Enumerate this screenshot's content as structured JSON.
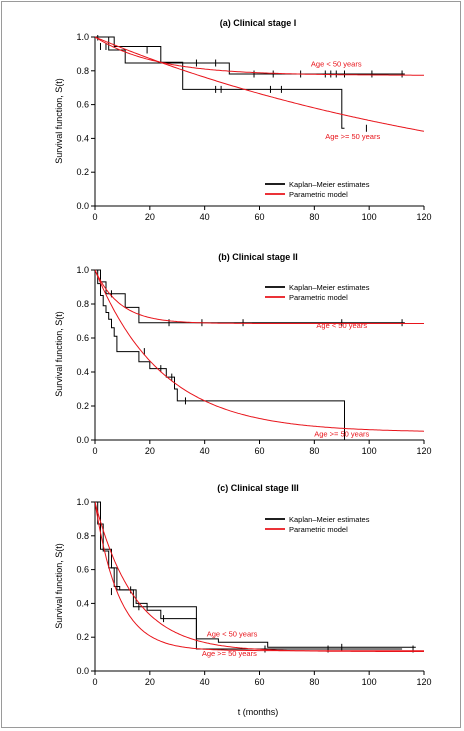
{
  "figure": {
    "xlabel": "t (months)"
  },
  "chart_data": [
    {
      "type": "line",
      "title": "(a) Clinical stage I",
      "ylabel": "Survival function, S(t)",
      "xlim": [
        0,
        120
      ],
      "ylim": [
        0,
        1
      ],
      "xticks": [
        0,
        20,
        40,
        60,
        80,
        100,
        120
      ],
      "yticks": [
        0.0,
        0.2,
        0.4,
        0.6,
        0.8,
        1.0
      ],
      "legend": {
        "placement": "bottom-right",
        "items": [
          {
            "label": "Kaplan–Meier estimates",
            "color": "#000000"
          },
          {
            "label": "Parametric model",
            "color": "#e8141b"
          }
        ]
      },
      "annotations": [
        {
          "text": "Age < 50 years",
          "x": 88,
          "y": 0.825
        },
        {
          "text": "Age >= 50 years",
          "x": 94,
          "y": 0.395
        }
      ],
      "series": [
        {
          "kind": "km",
          "group": "younger",
          "color": "#000000",
          "steps": [
            [
              0,
              1.0
            ],
            [
              5,
              0.923
            ],
            [
              11,
              0.846
            ],
            [
              25,
              0.846
            ],
            [
              49,
              0.781
            ],
            [
              113,
              0.781
            ]
          ],
          "censor": [
            [
              1,
              1.0
            ],
            [
              19,
              0.923
            ],
            [
              37,
              0.846
            ],
            [
              44,
              0.846
            ],
            [
              58,
              0.781
            ],
            [
              65,
              0.781
            ],
            [
              75,
              0.781
            ],
            [
              84,
              0.781
            ],
            [
              86,
              0.781
            ],
            [
              88,
              0.781
            ],
            [
              91,
              0.781
            ],
            [
              101,
              0.781
            ],
            [
              112,
              0.781
            ]
          ]
        },
        {
          "kind": "km",
          "group": "older",
          "color": "#000000",
          "steps": [
            [
              0,
              1.0
            ],
            [
              7,
              0.944
            ],
            [
              24,
              0.85
            ],
            [
              32,
              0.69
            ],
            [
              90,
              0.46
            ],
            [
              91,
              0.46
            ]
          ],
          "censor": [
            [
              2,
              0.944
            ],
            [
              4,
              0.944
            ],
            [
              44,
              0.69
            ],
            [
              46,
              0.69
            ],
            [
              64,
              0.69
            ],
            [
              68,
              0.69
            ],
            [
              99,
              0.46
            ]
          ]
        },
        {
          "kind": "model",
          "group": "younger",
          "color": "#e8141b",
          "model": "cure",
          "cure": 0.773,
          "rate": 0.045,
          "xmax": 120
        },
        {
          "kind": "model",
          "group": "older",
          "color": "#e8141b",
          "model": "weibull",
          "scale": 147,
          "shape": 1.0,
          "xmax": 120
        }
      ]
    },
    {
      "type": "line",
      "title": "(b) Clinical stage II",
      "ylabel": "Survival function, S(t)",
      "xlim": [
        0,
        120
      ],
      "ylim": [
        0,
        1
      ],
      "xticks": [
        0,
        20,
        40,
        60,
        80,
        100,
        120
      ],
      "yticks": [
        0.0,
        0.2,
        0.4,
        0.6,
        0.8,
        1.0
      ],
      "legend": {
        "placement": "top-right",
        "items": [
          {
            "label": "Kaplan–Meier estimates",
            "color": "#000000"
          },
          {
            "label": "Parametric model",
            "color": "#e8141b"
          }
        ]
      },
      "annotations": [
        {
          "text": "Age < 50 years",
          "x": 90,
          "y": 0.66
        },
        {
          "text": "Age >= 50 years",
          "x": 90,
          "y": 0.02
        }
      ],
      "series": [
        {
          "kind": "km",
          "group": "younger",
          "color": "#000000",
          "steps": [
            [
              0,
              1.0
            ],
            [
              2,
              0.93
            ],
            [
              4,
              0.86
            ],
            [
              11,
              0.78
            ],
            [
              16,
              0.69
            ],
            [
              113,
              0.69
            ]
          ],
          "censor": [
            [
              6,
              0.86
            ],
            [
              27,
              0.69
            ],
            [
              39,
              0.69
            ],
            [
              54,
              0.69
            ],
            [
              90,
              0.69
            ],
            [
              112,
              0.69
            ]
          ]
        },
        {
          "kind": "km",
          "group": "older",
          "color": "#000000",
          "steps": [
            [
              0,
              1.0
            ],
            [
              1,
              0.92
            ],
            [
              2,
              0.85
            ],
            [
              3,
              0.79
            ],
            [
              4,
              0.75
            ],
            [
              5,
              0.71
            ],
            [
              6,
              0.66
            ],
            [
              7,
              0.61
            ],
            [
              8,
              0.52
            ],
            [
              16,
              0.46
            ],
            [
              20,
              0.42
            ],
            [
              26,
              0.37
            ],
            [
              29,
              0.3
            ],
            [
              30,
              0.23
            ],
            [
              91,
              0.23
            ],
            [
              91,
              0.0
            ]
          ],
          "censor": [
            [
              18,
              0.52
            ],
            [
              24,
              0.42
            ],
            [
              28,
              0.37
            ],
            [
              33,
              0.23
            ]
          ]
        },
        {
          "kind": "model",
          "group": "younger",
          "color": "#e8141b",
          "model": "cure",
          "cure": 0.685,
          "rate": 0.11,
          "xmax": 120
        },
        {
          "kind": "model",
          "group": "older",
          "color": "#e8141b",
          "model": "cure",
          "cure": 0.045,
          "rate": 0.041,
          "xmax": 120
        }
      ]
    },
    {
      "type": "line",
      "title": "(c) Clinical stage III",
      "ylabel": "Survival function, S(t)",
      "xlim": [
        0,
        120
      ],
      "ylim": [
        0,
        1
      ],
      "xticks": [
        0,
        20,
        40,
        60,
        80,
        100,
        120
      ],
      "yticks": [
        0.0,
        0.2,
        0.4,
        0.6,
        0.8,
        1.0
      ],
      "legend": {
        "placement": "top-right",
        "items": [
          {
            "label": "Kaplan–Meier estimates",
            "color": "#000000"
          },
          {
            "label": "Parametric model",
            "color": "#e8141b"
          }
        ]
      },
      "annotations": [
        {
          "text": "Age < 50 years",
          "x": 50,
          "y": 0.205
        },
        {
          "text": "Age >= 50 years",
          "x": 49,
          "y": 0.09
        }
      ],
      "series": [
        {
          "kind": "km",
          "group": "younger",
          "color": "#000000",
          "steps": [
            [
              0,
              1.0
            ],
            [
              2,
              0.72
            ],
            [
              6,
              0.61
            ],
            [
              8,
              0.48
            ],
            [
              14,
              0.38
            ],
            [
              26,
              0.38
            ],
            [
              37,
              0.19
            ],
            [
              45,
              0.17
            ],
            [
              63,
              0.14
            ],
            [
              117,
              0.14
            ]
          ],
          "censor": [
            [
              16,
              0.38
            ],
            [
              90,
              0.14
            ]
          ]
        },
        {
          "kind": "km",
          "group": "older",
          "color": "#000000",
          "steps": [
            [
              0,
              1.0
            ],
            [
              1,
              0.87
            ],
            [
              3,
              0.71
            ],
            [
              5,
              0.61
            ],
            [
              7,
              0.5
            ],
            [
              9,
              0.48
            ],
            [
              15,
              0.4
            ],
            [
              19,
              0.36
            ],
            [
              24,
              0.31
            ],
            [
              37,
              0.13
            ],
            [
              112,
              0.13
            ]
          ],
          "censor": [
            [
              6,
              0.47
            ],
            [
              13,
              0.48
            ],
            [
              25,
              0.31
            ],
            [
              62,
              0.13
            ],
            [
              85,
              0.13
            ],
            [
              116,
              0.13
            ]
          ]
        },
        {
          "kind": "model",
          "group": "younger",
          "color": "#e8141b",
          "model": "cure",
          "cure": 0.115,
          "rate": 0.07,
          "xmax": 120
        },
        {
          "kind": "model",
          "group": "older",
          "color": "#e8141b",
          "model": "cure",
          "cure": 0.12,
          "rate": 0.115,
          "xmax": 120
        }
      ]
    }
  ]
}
